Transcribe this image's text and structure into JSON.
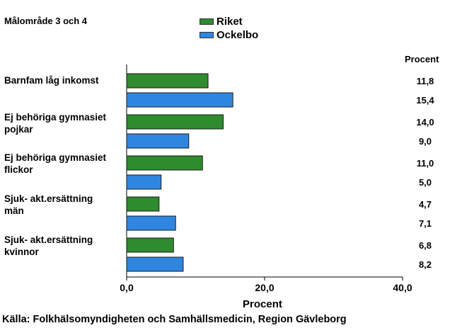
{
  "chart_data": {
    "type": "bar",
    "orientation": "horizontal",
    "title": "Målområde 3 och 4",
    "unit_label": "Procent",
    "xlabel": "Procent",
    "xlim": [
      0,
      40
    ],
    "xticks": [
      "0,0",
      "20,0",
      "40,0"
    ],
    "grid": false,
    "legend_position": "top-center",
    "categories": [
      [
        "Barnfam låg inkomst"
      ],
      [
        "Ej behöriga gymnasiet",
        "pojkar"
      ],
      [
        "Ej behöriga gymnasiet",
        "flickor"
      ],
      [
        "Sjuk- akt.ersättning",
        "män"
      ],
      [
        "Sjuk- akt.ersättning",
        "kvinnor"
      ]
    ],
    "series": [
      {
        "name": "Riket",
        "color": "#2e8b2e",
        "values": [
          11.8,
          14.0,
          11.0,
          4.7,
          6.8
        ],
        "labels": [
          "11,8",
          "14,0",
          "11,0",
          "4,7",
          "6,8"
        ]
      },
      {
        "name": "Ockelbo",
        "color": "#2f86e0",
        "values": [
          15.4,
          9.0,
          5.0,
          7.1,
          8.2
        ],
        "labels": [
          "15,4",
          "9,0",
          "5,0",
          "7,1",
          "8,2"
        ]
      }
    ]
  },
  "source": "Källa: Folkhälsomyndigheten och Samhällsmedicin, Region Gävleborg"
}
